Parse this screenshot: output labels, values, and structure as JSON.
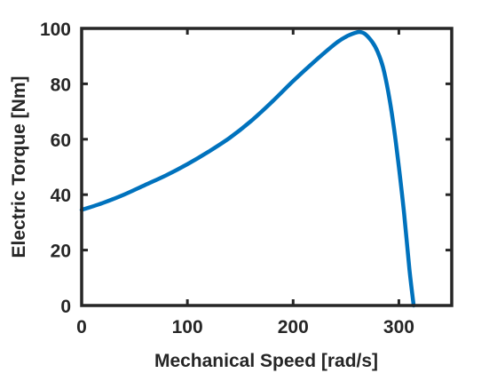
{
  "chart_data": {
    "type": "line",
    "title": "",
    "xlabel": "Mechanical Speed [rad/s]",
    "ylabel": "Electric Torque [Nm]",
    "xlim": [
      0,
      350
    ],
    "ylim": [
      0,
      100
    ],
    "xticks": [
      0,
      100,
      200,
      300
    ],
    "yticks": [
      0,
      20,
      40,
      60,
      80,
      100
    ],
    "grid": false,
    "line_color": "#0072BD",
    "axis_color": "#262626",
    "series": [
      {
        "x": [
          0,
          20,
          40,
          60,
          80,
          100,
          120,
          140,
          160,
          180,
          200,
          220,
          240,
          250,
          258,
          263,
          268,
          275,
          280,
          285,
          290,
          295,
          300,
          305,
          310,
          314
        ],
        "y": [
          34.5,
          37,
          40,
          43.5,
          47,
          51,
          55.5,
          60.5,
          66.5,
          73.5,
          81,
          88,
          94.5,
          97,
          98.3,
          98.7,
          98,
          95,
          91.5,
          86,
          77,
          65,
          50,
          33,
          13,
          0
        ]
      }
    ]
  }
}
